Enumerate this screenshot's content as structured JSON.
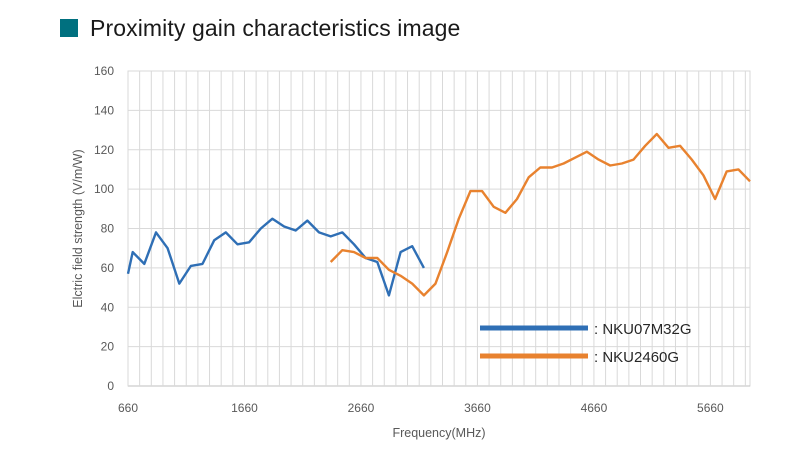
{
  "heading": {
    "title": "Proximity gain characteristics image",
    "marker_color": "#00707f"
  },
  "chart_data": {
    "type": "line",
    "title": "Proximity gain characteristics image",
    "xlabel": "Frequency(MHz)",
    "ylabel": "Elctric field strength (V/m/W)",
    "xlim": [
      660,
      6000
    ],
    "ylim": [
      0,
      160
    ],
    "x_ticks": [
      660,
      1660,
      2660,
      3660,
      4660,
      5660
    ],
    "x_tick_labels": [
      "660",
      "1660",
      "2660",
      "3660",
      "4660",
      "5660"
    ],
    "y_ticks": [
      0,
      20,
      40,
      60,
      80,
      100,
      120,
      140,
      160
    ],
    "y_tick_labels": [
      "0",
      "20",
      "40",
      "60",
      "80",
      "100",
      "120",
      "140",
      "160"
    ],
    "grid": true,
    "legend_position": "bottom-right",
    "series": [
      {
        "name": ": NKU07M32G",
        "color": "#2f6fb5",
        "x": [
          660,
          700,
          800,
          900,
          1000,
          1100,
          1200,
          1300,
          1400,
          1500,
          1600,
          1700,
          1800,
          1900,
          2000,
          2100,
          2200,
          2300,
          2400,
          2500,
          2600,
          2700,
          2800,
          2900,
          3000,
          3100,
          3200
        ],
        "y": [
          57,
          68,
          62,
          78,
          70,
          52,
          61,
          62,
          74,
          78,
          72,
          73,
          80,
          85,
          81,
          79,
          84,
          78,
          76,
          78,
          72,
          65,
          63,
          46,
          68,
          71,
          60
        ]
      },
      {
        "name": ": NKU2460G",
        "color": "#e8822f",
        "x": [
          2400,
          2500,
          2600,
          2700,
          2800,
          2900,
          3000,
          3100,
          3200,
          3300,
          3400,
          3500,
          3600,
          3700,
          3800,
          3900,
          4000,
          4100,
          4200,
          4300,
          4400,
          4500,
          4600,
          4700,
          4800,
          4900,
          5000,
          5100,
          5200,
          5300,
          5400,
          5500,
          5600,
          5700,
          5800,
          5900,
          6000
        ],
        "y": [
          63,
          69,
          68,
          65,
          65,
          59,
          56,
          52,
          46,
          52,
          68,
          85,
          99,
          99,
          91,
          88,
          95,
          106,
          111,
          111,
          113,
          116,
          119,
          115,
          112,
          113,
          115,
          122,
          128,
          121,
          122,
          115,
          107,
          95,
          109,
          110,
          104
        ]
      }
    ]
  }
}
